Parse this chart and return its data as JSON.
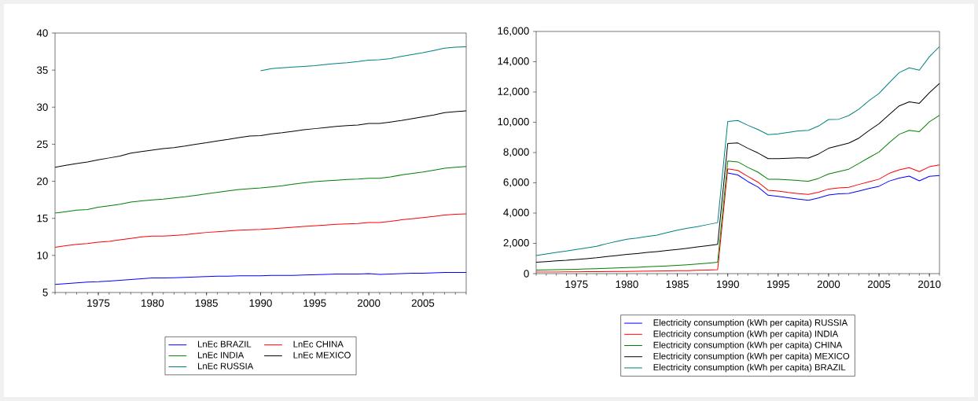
{
  "chart_data": [
    {
      "type": "line",
      "x": [
        1971,
        1972,
        1973,
        1974,
        1975,
        1976,
        1977,
        1978,
        1979,
        1980,
        1981,
        1982,
        1983,
        1984,
        1985,
        1986,
        1987,
        1988,
        1989,
        1990,
        1991,
        1992,
        1993,
        1994,
        1995,
        1996,
        1997,
        1998,
        1999,
        2000,
        2001,
        2002,
        2003,
        2004,
        2005,
        2006,
        2007,
        2008,
        2009
      ],
      "xlim": [
        1971,
        2009
      ],
      "xticks": [
        1975,
        1980,
        1985,
        1990,
        1995,
        2000,
        2005
      ],
      "ylim": [
        5,
        40
      ],
      "yticks": [
        5,
        10,
        15,
        20,
        25,
        30,
        35,
        40
      ],
      "legend": "bottom",
      "series": [
        {
          "name": "LnEc BRAZIL",
          "color": "#0000ff",
          "values": [
            6.1,
            6.2,
            6.3,
            6.4,
            6.45,
            6.55,
            6.65,
            6.75,
            6.85,
            6.95,
            6.95,
            7.0,
            7.05,
            7.1,
            7.15,
            7.2,
            7.2,
            7.25,
            7.25,
            7.25,
            7.3,
            7.3,
            7.3,
            7.35,
            7.4,
            7.45,
            7.5,
            7.5,
            7.5,
            7.55,
            7.45,
            7.5,
            7.55,
            7.6,
            7.6,
            7.65,
            7.7,
            7.7,
            7.7
          ]
        },
        {
          "name": "LnEc CHINA",
          "color": "#ff0000",
          "values": [
            11.1,
            11.3,
            11.5,
            11.6,
            11.8,
            11.9,
            12.1,
            12.3,
            12.5,
            12.6,
            12.6,
            12.7,
            12.8,
            12.95,
            13.1,
            13.2,
            13.3,
            13.4,
            13.45,
            13.5,
            13.6,
            13.7,
            13.8,
            13.9,
            14.0,
            14.1,
            14.2,
            14.25,
            14.3,
            14.45,
            14.45,
            14.6,
            14.8,
            14.95,
            15.1,
            15.25,
            15.45,
            15.55,
            15.6
          ]
        },
        {
          "name": "LnEc INDIA",
          "color": "#008000",
          "values": [
            15.7,
            15.9,
            16.1,
            16.2,
            16.5,
            16.7,
            16.9,
            17.2,
            17.35,
            17.5,
            17.6,
            17.75,
            17.9,
            18.1,
            18.3,
            18.5,
            18.7,
            18.9,
            19.0,
            19.1,
            19.25,
            19.4,
            19.6,
            19.8,
            19.95,
            20.05,
            20.15,
            20.25,
            20.3,
            20.4,
            20.4,
            20.6,
            20.85,
            21.05,
            21.25,
            21.5,
            21.75,
            21.9,
            22.0
          ]
        },
        {
          "name": "LnEc MEXICO",
          "color": "#000000",
          "values": [
            21.9,
            22.15,
            22.4,
            22.6,
            22.9,
            23.15,
            23.4,
            23.8,
            24.0,
            24.2,
            24.4,
            24.55,
            24.75,
            25.0,
            25.2,
            25.45,
            25.65,
            25.9,
            26.1,
            26.15,
            26.4,
            26.55,
            26.75,
            26.95,
            27.1,
            27.25,
            27.4,
            27.5,
            27.6,
            27.8,
            27.8,
            28.0,
            28.2,
            28.45,
            28.7,
            28.95,
            29.25,
            29.4,
            29.5
          ]
        },
        {
          "name": "LnEc RUSSIA",
          "color": "#008080",
          "values": [
            null,
            null,
            null,
            null,
            null,
            null,
            null,
            null,
            null,
            null,
            null,
            null,
            null,
            null,
            null,
            null,
            null,
            null,
            null,
            34.9,
            35.2,
            35.3,
            35.4,
            35.5,
            35.6,
            35.75,
            35.9,
            36.0,
            36.15,
            36.35,
            36.4,
            36.55,
            36.85,
            37.1,
            37.35,
            37.65,
            37.95,
            38.1,
            38.15
          ]
        }
      ]
    },
    {
      "type": "line",
      "x": [
        1971,
        1972,
        1973,
        1974,
        1975,
        1976,
        1977,
        1978,
        1979,
        1980,
        1981,
        1982,
        1983,
        1984,
        1985,
        1986,
        1987,
        1988,
        1989,
        1990,
        1991,
        1992,
        1993,
        1994,
        1995,
        1996,
        1997,
        1998,
        1999,
        2000,
        2001,
        2002,
        2003,
        2004,
        2005,
        2006,
        2007,
        2008,
        2009,
        2010,
        2011
      ],
      "xlim": [
        1971,
        2011
      ],
      "xticks": [
        1975,
        1980,
        1985,
        1990,
        1995,
        2000,
        2005,
        2010
      ],
      "ylim": [
        0,
        16000
      ],
      "yticks": [
        0,
        {
          "value": 2000,
          "label": "2,000"
        },
        {
          "value": 4000,
          "label": "4,000"
        },
        {
          "value": 6000,
          "label": "6,000"
        },
        {
          "value": 8000,
          "label": "8,000"
        },
        {
          "value": 10000,
          "label": "10,000"
        },
        {
          "value": 12000,
          "label": "12,000"
        },
        {
          "value": 14000,
          "label": "14,000"
        },
        {
          "value": 16000,
          "label": "16,000"
        }
      ],
      "legend": "bottom",
      "series": [
        {
          "name": "Electricity consumption (kWh per capita) RUSSIA",
          "color": "#0000ff",
          "values": [
            null,
            null,
            null,
            null,
            null,
            null,
            null,
            null,
            null,
            null,
            null,
            null,
            null,
            null,
            null,
            null,
            null,
            null,
            null,
            6650,
            6520,
            6080,
            5720,
            5180,
            5100,
            5010,
            4920,
            4840,
            5000,
            5200,
            5270,
            5300,
            5460,
            5620,
            5770,
            6110,
            6310,
            6440,
            6130,
            6430,
            6480
          ]
        },
        {
          "name": "Electricity consumption (kWh per capita) INDIA",
          "color": "#ff0000",
          "values": [
            100,
            105,
            110,
            115,
            120,
            125,
            130,
            135,
            140,
            145,
            150,
            160,
            170,
            180,
            190,
            200,
            215,
            235,
            260,
            6920,
            6820,
            6420,
            6040,
            5510,
            5450,
            5360,
            5290,
            5230,
            5380,
            5590,
            5660,
            5700,
            5890,
            6070,
            6240,
            6620,
            6860,
            7000,
            6740,
            7060,
            7180
          ]
        },
        {
          "name": "Electricity consumption (kWh per capita) CHINA",
          "color": "#008000",
          "values": [
            240,
            250,
            260,
            270,
            290,
            310,
            330,
            350,
            380,
            400,
            420,
            450,
            480,
            510,
            550,
            590,
            640,
            690,
            750,
            7440,
            7380,
            7020,
            6700,
            6240,
            6230,
            6190,
            6150,
            6100,
            6290,
            6580,
            6740,
            6900,
            7280,
            7660,
            8030,
            8640,
            9200,
            9470,
            9380,
            10030,
            10460
          ]
        },
        {
          "name": "Electricity consumption (kWh per capita)  MEXICO",
          "color": "#000000",
          "values": [
            750,
            790,
            840,
            880,
            940,
            990,
            1050,
            1130,
            1200,
            1270,
            1330,
            1400,
            1460,
            1530,
            1600,
            1680,
            1770,
            1850,
            1940,
            8600,
            8630,
            8280,
            7970,
            7600,
            7600,
            7620,
            7650,
            7640,
            7900,
            8280,
            8460,
            8620,
            8950,
            9450,
            9900,
            10500,
            11080,
            11350,
            11250,
            11950,
            12570
          ]
        },
        {
          "name": "Electricity consumption (kWh per capita) BRAZIL",
          "color": "#008080",
          "values": [
            1200,
            1300,
            1400,
            1490,
            1600,
            1700,
            1810,
            1980,
            2130,
            2270,
            2350,
            2450,
            2550,
            2720,
            2870,
            3000,
            3100,
            3240,
            3370,
            10050,
            10120,
            9800,
            9520,
            9180,
            9230,
            9330,
            9430,
            9470,
            9750,
            10180,
            10200,
            10440,
            10860,
            11420,
            11900,
            12600,
            13280,
            13600,
            13440,
            14330,
            15000
          ]
        }
      ]
    }
  ]
}
